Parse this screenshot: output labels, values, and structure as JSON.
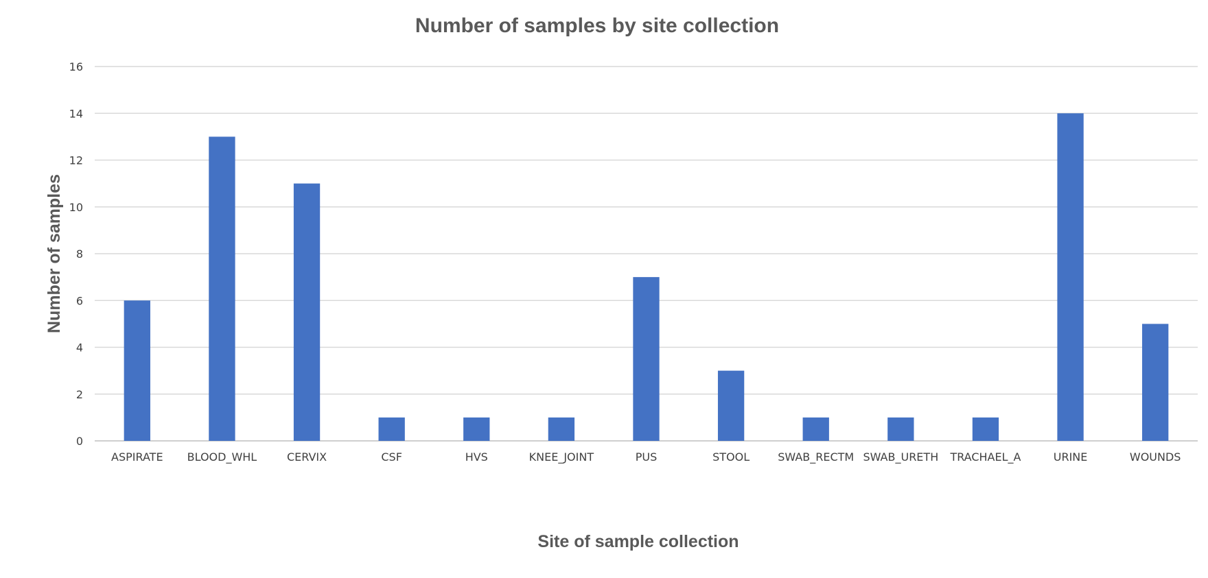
{
  "chart_data": {
    "type": "bar",
    "title": "Number of samples by site collection",
    "xlabel": "Site of sample collection",
    "ylabel": "Number of samples",
    "categories": [
      "ASPIRATE",
      "BLOOD_WHL",
      "CERVIX",
      "CSF",
      "HVS",
      "KNEE_JOINT",
      "PUS",
      "STOOL",
      "SWAB_RECTM",
      "SWAB_URETH",
      "TRACHAEL_A",
      "URINE",
      "WOUNDS"
    ],
    "values": [
      6,
      13,
      11,
      1,
      1,
      1,
      7,
      3,
      1,
      1,
      1,
      14,
      5
    ],
    "ylim": [
      0,
      16
    ],
    "yticks": [
      0,
      2,
      4,
      6,
      8,
      10,
      12,
      14,
      16
    ],
    "grid": true,
    "legend": "none",
    "bar_color": "#4472C4"
  }
}
